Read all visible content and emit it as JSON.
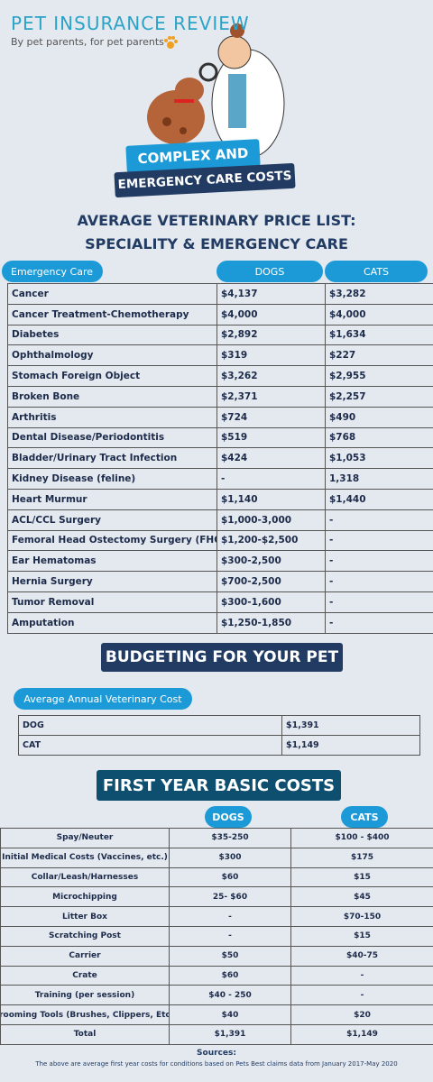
{
  "header": {
    "brand": "PET INSURANCE REVIEW",
    "tagline": "By pet parents, for pet parents",
    "banner": [
      "COMPLEX AND",
      "EMERGENCY CARE COSTS"
    ]
  },
  "price_list": {
    "title": [
      "AVERAGE VETERINARY PRICE LIST:",
      "SPECIALITY & EMERGENCY CARE"
    ],
    "columns": [
      "Emergency Care",
      "DOGS",
      "CATS"
    ],
    "rows": [
      [
        "Cancer",
        "$4,137",
        "$3,282"
      ],
      [
        "Cancer Treatment-Chemotherapy",
        "$4,000",
        "$4,000"
      ],
      [
        "Diabetes",
        "$2,892",
        "$1,634"
      ],
      [
        "Ophthalmology",
        "$319",
        "$227"
      ],
      [
        "Stomach Foreign Object",
        "$3,262",
        "$2,955"
      ],
      [
        "Broken Bone",
        "$2,371",
        "$2,257"
      ],
      [
        "Arthritis",
        "$724",
        "$490"
      ],
      [
        "Dental Disease/Periodontitis",
        "$519",
        "$768"
      ],
      [
        "Bladder/Urinary Tract Infection",
        "$424",
        "$1,053"
      ],
      [
        "Kidney Disease (feline)",
        "-",
        "1,318"
      ],
      [
        "Heart Murmur",
        "$1,140",
        "$1,440"
      ],
      [
        "ACL/CCL Surgery",
        "$1,000-3,000",
        "-"
      ],
      [
        "Femoral Head Ostectomy Surgery (FHO)",
        "$1,200-$2,500",
        "-"
      ],
      [
        "Ear Hematomas",
        "$300-2,500",
        "-"
      ],
      [
        "Hernia Surgery",
        "$700-2,500",
        "-"
      ],
      [
        "Tumor Removal",
        "$300-1,600",
        "-"
      ],
      [
        "Amputation",
        "$1,250-1,850",
        "-"
      ]
    ]
  },
  "budget": {
    "title": "BUDGETING FOR YOUR PET",
    "label": "Average Annual Veterinary Cost",
    "rows": [
      [
        "DOG",
        "$1,391"
      ],
      [
        "CAT",
        "$1,149"
      ]
    ]
  },
  "first_year": {
    "title": "FIRST YEAR BASIC COSTS",
    "columns": [
      "DOGS",
      "CATS"
    ],
    "rows": [
      [
        "Spay/Neuter",
        "$35-250",
        "$100 - $400"
      ],
      [
        "Initial Medical Costs (Vaccines, etc.)",
        "$300",
        "$175"
      ],
      [
        "Collar/Leash/Harnesses",
        "$60",
        "$15"
      ],
      [
        "Microchipping",
        "25- $60",
        "$45"
      ],
      [
        "Litter Box",
        "-",
        "$70-150"
      ],
      [
        "Scratching Post",
        "-",
        "$15"
      ],
      [
        "Carrier",
        "$50",
        "$40-75"
      ],
      [
        "Crate",
        "$60",
        "-"
      ],
      [
        "Training (per session)",
        "$40 - 250",
        "-"
      ],
      [
        "Grooming Tools (Brushes, Clippers, Etc.)",
        "$40",
        "$20"
      ],
      [
        "Total",
        "$1,391",
        "$1,149"
      ]
    ]
  },
  "sources": {
    "heading": "Sources:",
    "text": "The above are average first year costs for conditions based  on Pets Best claims data from January 2017-May 2020"
  }
}
